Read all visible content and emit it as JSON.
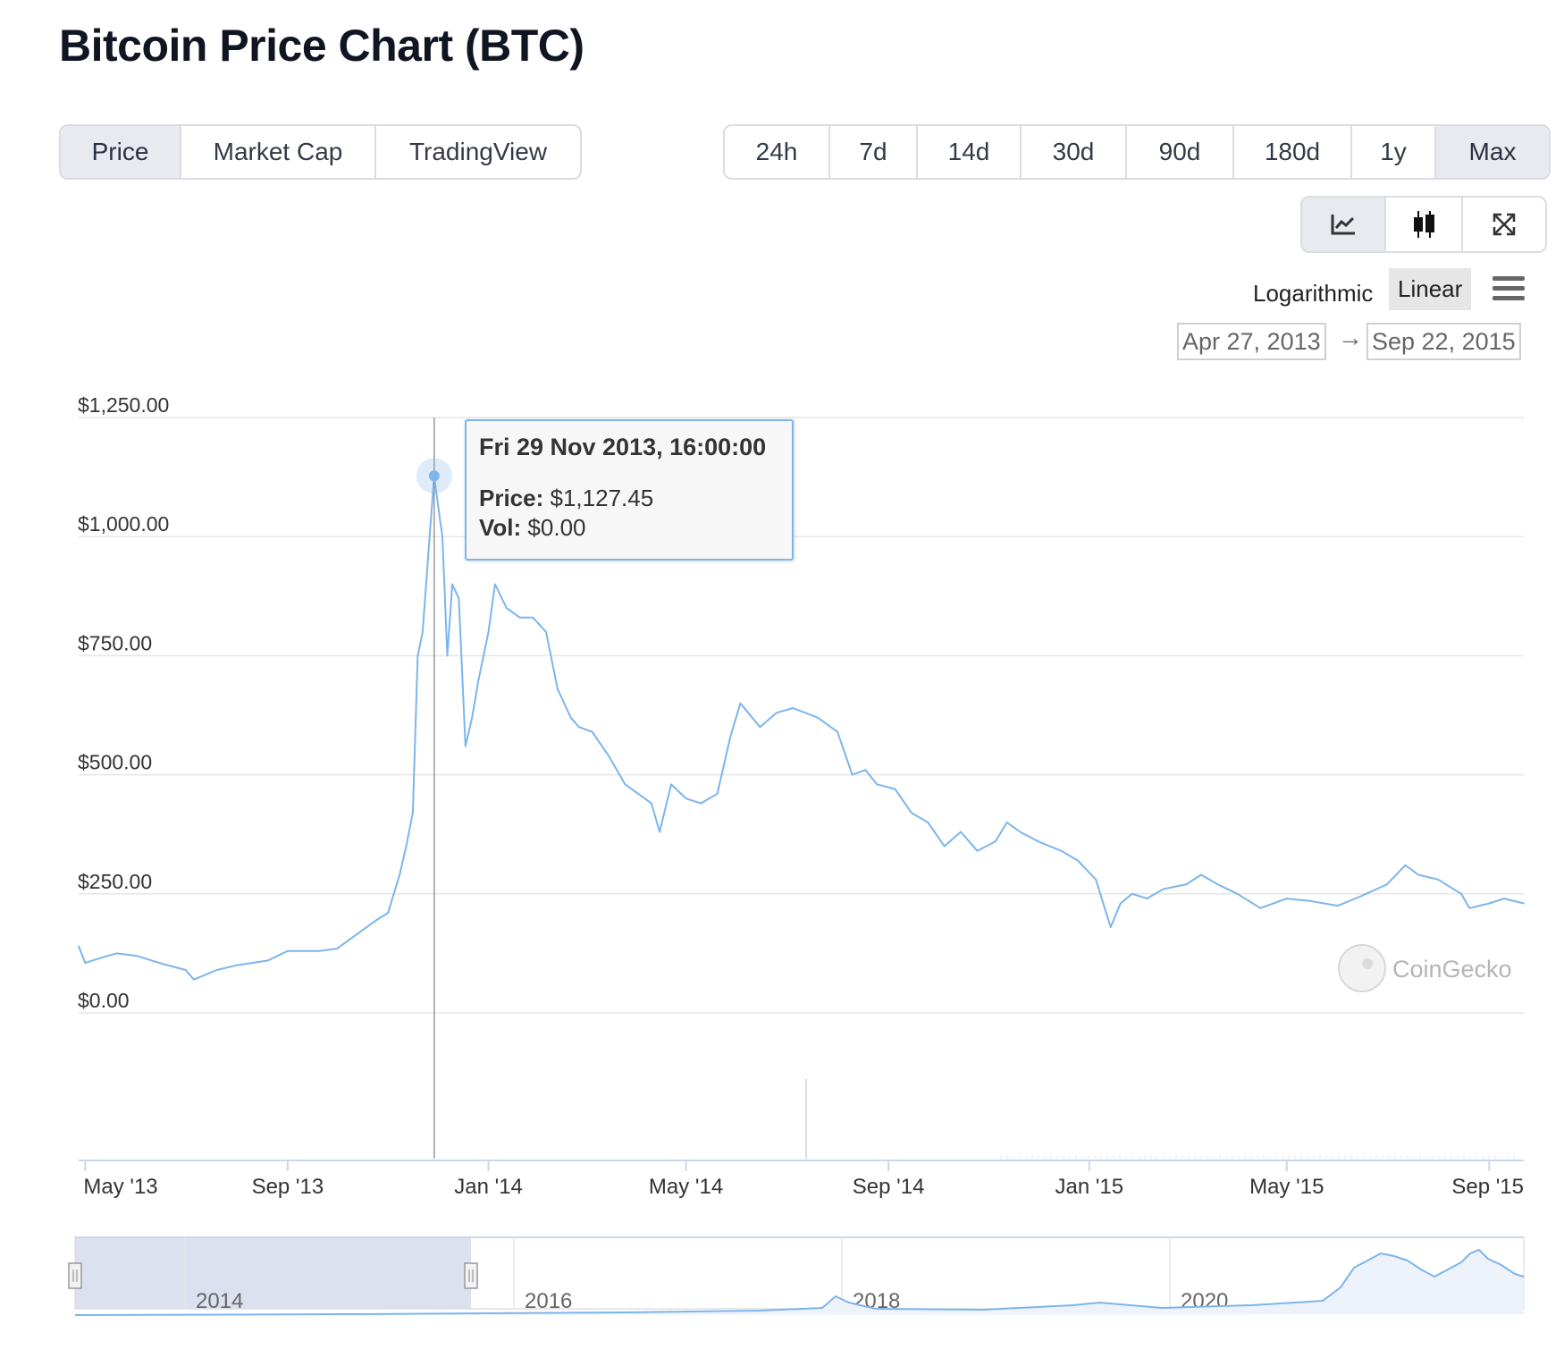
{
  "page": {
    "title": "Bitcoin Price Chart (BTC)"
  },
  "tabs": [
    {
      "label": "Price",
      "active": true
    },
    {
      "label": "Market Cap",
      "active": false
    },
    {
      "label": "TradingView",
      "active": false
    }
  ],
  "ranges": [
    {
      "label": "24h",
      "active": false
    },
    {
      "label": "7d",
      "active": false
    },
    {
      "label": "14d",
      "active": false
    },
    {
      "label": "30d",
      "active": false
    },
    {
      "label": "90d",
      "active": false
    },
    {
      "label": "180d",
      "active": false
    },
    {
      "label": "1y",
      "active": false
    },
    {
      "label": "Max",
      "active": true
    }
  ],
  "chart_tools": [
    {
      "icon": "line-chart-icon",
      "active": true
    },
    {
      "icon": "candlestick-icon",
      "active": false
    },
    {
      "icon": "fullscreen-icon",
      "active": false
    }
  ],
  "scale": {
    "log_label": "Logarithmic",
    "linear_label": "Linear",
    "selected": "Linear"
  },
  "date_range": {
    "from": "Apr 27, 2013",
    "to": "Sep 22, 2015"
  },
  "tooltip": {
    "date": "Fri 29 Nov 2013, 16:00:00",
    "price_label": "Price:",
    "price_value": "$1,127.45",
    "vol_label": "Vol:",
    "vol_value": "$0.00"
  },
  "watermark": "CoinGecko",
  "colors": {
    "line": "#7cb5ec",
    "navigator_mask": "#d8deee",
    "crosshair": "#999999"
  },
  "chart_data": {
    "type": "line",
    "ylim": [
      0,
      1250
    ],
    "y_ticks": [
      {
        "value": 0,
        "label": "$0.00"
      },
      {
        "value": 250,
        "label": "$250.00"
      },
      {
        "value": 500,
        "label": "$500.00"
      },
      {
        "value": 750,
        "label": "$750.00"
      },
      {
        "value": 1000,
        "label": "$1,000.00"
      },
      {
        "value": 1250,
        "label": "$1,250.00"
      }
    ],
    "xlim": [
      "2013-04-27",
      "2015-09-22"
    ],
    "x_ticks": [
      {
        "date": "2013-05-01",
        "label": "May '13"
      },
      {
        "date": "2013-09-01",
        "label": "Sep '13"
      },
      {
        "date": "2014-01-01",
        "label": "Jan '14"
      },
      {
        "date": "2014-05-01",
        "label": "May '14"
      },
      {
        "date": "2014-09-01",
        "label": "Sep '14"
      },
      {
        "date": "2015-01-01",
        "label": "Jan '15"
      },
      {
        "date": "2015-05-01",
        "label": "May '15"
      },
      {
        "date": "2015-09-01",
        "label": "Sep '15"
      }
    ],
    "series": [
      {
        "x": [
          "2013-04-27",
          "2013-05-01",
          "2013-05-10",
          "2013-05-20",
          "2013-06-01",
          "2013-06-15",
          "2013-07-01",
          "2013-07-06",
          "2013-07-20",
          "2013-08-01",
          "2013-08-20",
          "2013-09-01",
          "2013-09-20",
          "2013-10-01",
          "2013-10-15",
          "2013-10-25",
          "2013-11-01",
          "2013-11-08",
          "2013-11-12",
          "2013-11-16",
          "2013-11-19",
          "2013-11-22",
          "2013-11-26",
          "2013-11-29",
          "2013-12-02",
          "2013-12-04",
          "2013-12-07",
          "2013-12-10",
          "2013-12-14",
          "2013-12-18",
          "2013-12-22",
          "2013-12-26",
          "2014-01-01",
          "2014-01-05",
          "2014-01-12",
          "2014-01-20",
          "2014-01-28",
          "2014-02-05",
          "2014-02-12",
          "2014-02-20",
          "2014-02-25",
          "2014-03-05",
          "2014-03-15",
          "2014-03-25",
          "2014-04-02",
          "2014-04-10",
          "2014-04-15",
          "2014-04-22",
          "2014-05-01",
          "2014-05-10",
          "2014-05-20",
          "2014-05-28",
          "2014-06-03",
          "2014-06-15",
          "2014-06-25",
          "2014-07-05",
          "2014-07-20",
          "2014-08-01",
          "2014-08-10",
          "2014-08-18",
          "2014-08-25",
          "2014-09-05",
          "2014-09-15",
          "2014-09-25",
          "2014-10-05",
          "2014-10-15",
          "2014-10-25",
          "2014-11-05",
          "2014-11-12",
          "2014-11-20",
          "2014-12-01",
          "2014-12-15",
          "2014-12-25",
          "2015-01-05",
          "2015-01-14",
          "2015-01-20",
          "2015-01-27",
          "2015-02-05",
          "2015-02-15",
          "2015-03-01",
          "2015-03-10",
          "2015-03-20",
          "2015-04-01",
          "2015-04-15",
          "2015-05-01",
          "2015-05-15",
          "2015-06-01",
          "2015-06-15",
          "2015-07-01",
          "2015-07-12",
          "2015-07-20",
          "2015-08-01",
          "2015-08-15",
          "2015-08-20",
          "2015-09-01",
          "2015-09-10",
          "2015-09-22"
        ],
        "y": [
          140,
          105,
          115,
          125,
          120,
          105,
          90,
          70,
          90,
          100,
          110,
          130,
          130,
          135,
          170,
          195,
          210,
          290,
          350,
          420,
          750,
          800,
          990,
          1127,
          1050,
          1000,
          750,
          900,
          870,
          560,
          620,
          700,
          800,
          900,
          850,
          830,
          830,
          800,
          680,
          620,
          600,
          590,
          540,
          480,
          460,
          440,
          380,
          480,
          450,
          440,
          460,
          580,
          650,
          600,
          630,
          640,
          620,
          590,
          500,
          510,
          480,
          470,
          420,
          400,
          350,
          380,
          340,
          360,
          400,
          380,
          360,
          340,
          320,
          280,
          180,
          230,
          250,
          240,
          260,
          270,
          290,
          270,
          250,
          220,
          240,
          235,
          225,
          245,
          270,
          310,
          290,
          280,
          250,
          220,
          230,
          240,
          230
        ]
      }
    ]
  },
  "navigator": {
    "x_labels": [
      "2014",
      "2016",
      "2018",
      "2020"
    ]
  }
}
